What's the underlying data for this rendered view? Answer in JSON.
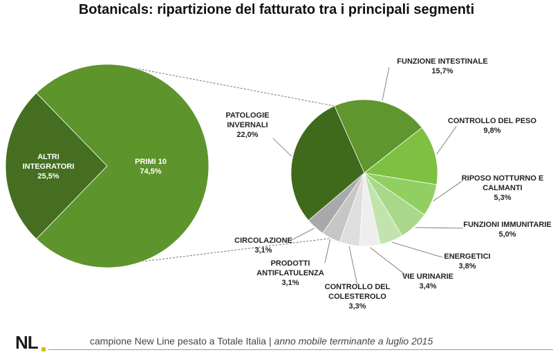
{
  "chart_data": [
    {
      "type": "pie",
      "title": "Botanicals: ripartizione del fatturato tra i principali segmenti",
      "slices": [
        {
          "name": "ALTRI INTEGRATORI",
          "value": 25.5,
          "label": "25,5%",
          "color": "#466e20"
        },
        {
          "name": "PRIMI 10",
          "value": 74.5,
          "label": "74,5%",
          "color": "#5e942c"
        }
      ]
    },
    {
      "type": "pie",
      "note": "breakdown of PRIMI 10",
      "slices": [
        {
          "name": "FUNZIONE INTESTINALE",
          "lines": [
            "FUNZIONE INTESTINALE"
          ],
          "value": 15.7,
          "label": "15,7%",
          "color": "#5f962d"
        },
        {
          "name": "CONTROLLO DEL PESO",
          "lines": [
            "CONTROLLO DEL PESO"
          ],
          "value": 9.8,
          "label": "9,8%",
          "color": "#7dc042"
        },
        {
          "name": "RIPOSO NOTTURNO E CALMANTI",
          "lines": [
            "RIPOSO NOTTURNO E",
            "CALMANTI"
          ],
          "value": 5.3,
          "label": "5,3%",
          "color": "#92cf63"
        },
        {
          "name": "FUNZIONI IMMUNITARIE",
          "lines": [
            "FUNZIONI IMMUNITARIE"
          ],
          "value": 5.0,
          "label": "5,0%",
          "color": "#a9d88a"
        },
        {
          "name": "ENERGETICI",
          "lines": [
            "ENERGETICI"
          ],
          "value": 3.8,
          "label": "3,8%",
          "color": "#c2e3ad"
        },
        {
          "name": "VIE URINARIE",
          "lines": [
            "VIE URINARIE"
          ],
          "value": 3.4,
          "label": "3,4%",
          "color": "#eeeeee"
        },
        {
          "name": "CONTROLLO DEL COLESTEROLO",
          "lines": [
            "CONTROLLO DEL",
            "COLESTEROLO"
          ],
          "value": 3.3,
          "label": "3,3%",
          "color": "#dedede"
        },
        {
          "name": "PRODOTTI ANTIFLATULENZA",
          "lines": [
            "PRODOTTI",
            "ANTIFLATULENZA"
          ],
          "value": 3.1,
          "label": "3,1%",
          "color": "#c6c6c6"
        },
        {
          "name": "CIRCOLAZIONE",
          "lines": [
            "CIRCOLAZIONE"
          ],
          "value": 3.1,
          "label": "3,1%",
          "color": "#a9a9a9"
        },
        {
          "name": "PATOLOGIE INVERNALI",
          "lines": [
            "PATOLOGIE",
            "INVERNALI"
          ],
          "value": 22.0,
          "label": "22,0%",
          "color": "#3f6a1c"
        }
      ]
    }
  ],
  "footer": {
    "logo": "NL",
    "logo_color": "#c8c800",
    "source_text": "campione New Line pesato a Totale Italia",
    "separator": "|",
    "period_text": "anno mobile terminante a luglio 2015"
  }
}
